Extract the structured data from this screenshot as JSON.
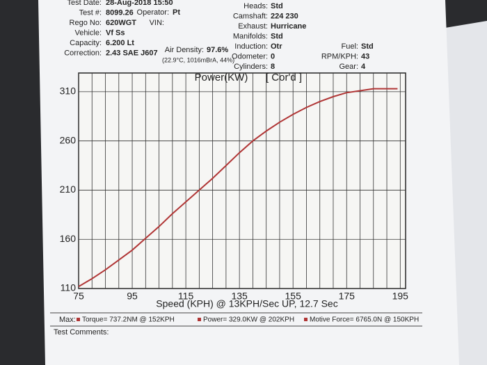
{
  "header": {
    "left": [
      [
        "Test Date:",
        "28-Aug-2018 15:50"
      ],
      [
        "Test #:",
        "8099.26"
      ],
      [
        "Rego No:",
        "620WGT"
      ],
      [
        "Vehicle:",
        "Vf Ss"
      ],
      [
        "Capacity:",
        "6.200 Lt"
      ],
      [
        "Correction:",
        "2.43 SAE J607"
      ]
    ],
    "operator": [
      "Operator:",
      "Pt"
    ],
    "vin": [
      "VIN:"
    ],
    "air_density": [
      "Air Density:",
      "97.6%"
    ],
    "air_detail": "(22.9°C, 1016mBrA, 44%)",
    "middle": [
      [
        "Heads:",
        "Std"
      ],
      [
        "Camshaft:",
        "224 230"
      ],
      [
        "Exhaust:",
        "Hurricane"
      ],
      [
        "Manifolds:",
        "Std"
      ],
      [
        "Induction:",
        "Otr"
      ],
      [
        "Odometer:",
        "0"
      ],
      [
        "Cylinders:",
        "8"
      ]
    ],
    "right": [
      [
        "Fuel:",
        "Std"
      ],
      [
        "RPM/KPH:",
        "43"
      ],
      [
        "Gear:",
        "4"
      ]
    ]
  },
  "chart_data": {
    "type": "line",
    "title": "Power(KW)",
    "annotation": "[ Cor'd ]",
    "x_label": "Speed (KPH) @ 13KPH/Sec UP, 12.7 Sec",
    "x": [
      75,
      80,
      85,
      90,
      95,
      100,
      105,
      110,
      115,
      120,
      125,
      130,
      135,
      140,
      145,
      150,
      155,
      160,
      165,
      170,
      175,
      180,
      185,
      190,
      194
    ],
    "series": [
      {
        "name": "Power",
        "color": "#b03535",
        "values": [
          112,
          120,
          129,
          139,
          149,
          161,
          173,
          186,
          198,
          210,
          222,
          235,
          248,
          260,
          270,
          279,
          287,
          294,
          300,
          305,
          309,
          311,
          313,
          313,
          313
        ]
      }
    ],
    "xlim": [
      75,
      197
    ],
    "ylim": [
      110,
      329
    ],
    "xticks": [
      75,
      95,
      115,
      135,
      155,
      175,
      195
    ],
    "yticks": [
      110,
      160,
      210,
      260,
      310
    ],
    "xgrid": [
      80,
      85,
      90,
      100,
      105,
      110,
      120,
      125,
      130,
      140,
      145,
      150,
      160,
      165,
      170,
      180,
      185,
      190
    ],
    "grid": true
  },
  "footer": {
    "max": "Max:",
    "items": [
      "Torque= 737.2NM @ 152KPH",
      "Power= 329.0KW @ 202KPH",
      "Motive Force= 6765.0N @ 150KPH"
    ],
    "comments": "Test Comments:"
  }
}
